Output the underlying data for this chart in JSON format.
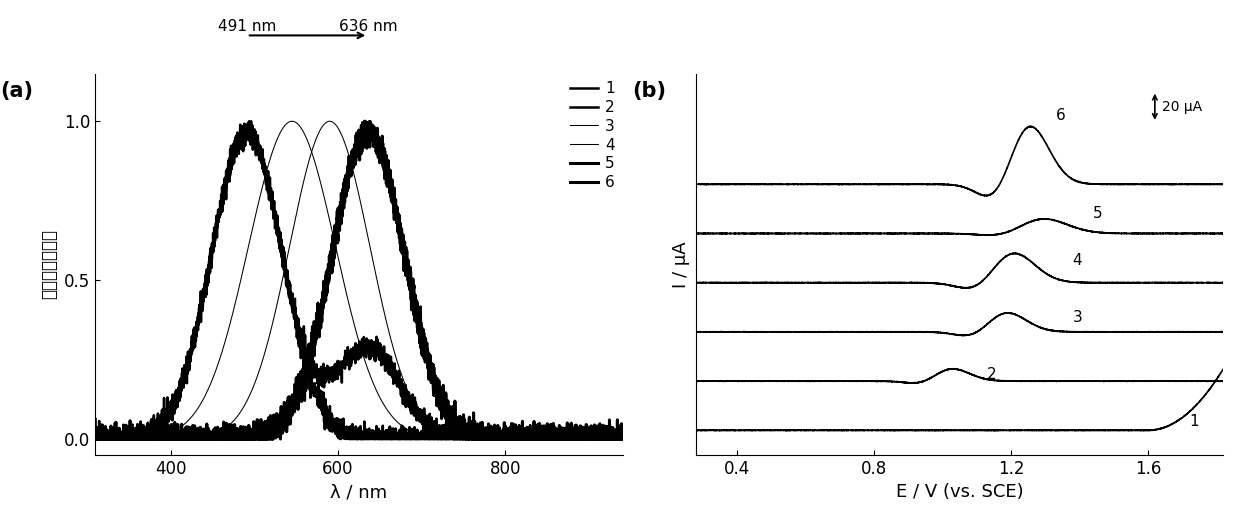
{
  "panel_a_label": "(a)",
  "panel_b_label": "(b)",
  "arrow_text_left": "491 nm",
  "arrow_text_right": "636 nm",
  "ylabel_a": "电化学发光强度",
  "xlabel_a": "λ / nm",
  "ylabel_b": "I / μA",
  "xlabel_b": "E / V (vs. SCE)",
  "xlim_a": [
    310,
    940
  ],
  "ylim_a": [
    -0.05,
    1.15
  ],
  "xticks_a": [
    400,
    600,
    800
  ],
  "yticks_a": [
    0.0,
    0.5,
    1.0
  ],
  "xlim_b": [
    0.28,
    1.82
  ],
  "ylim_b": [
    -1.0,
    14.5
  ],
  "xticks_b": [
    0.4,
    0.8,
    1.2,
    1.6
  ],
  "legend_labels": [
    "1",
    "2",
    "3",
    "4",
    "5",
    "6"
  ],
  "scale_bar_text": "20 μA",
  "lw_thick": 1.8,
  "lw_thin": 0.75,
  "lw_bold": 2.2
}
